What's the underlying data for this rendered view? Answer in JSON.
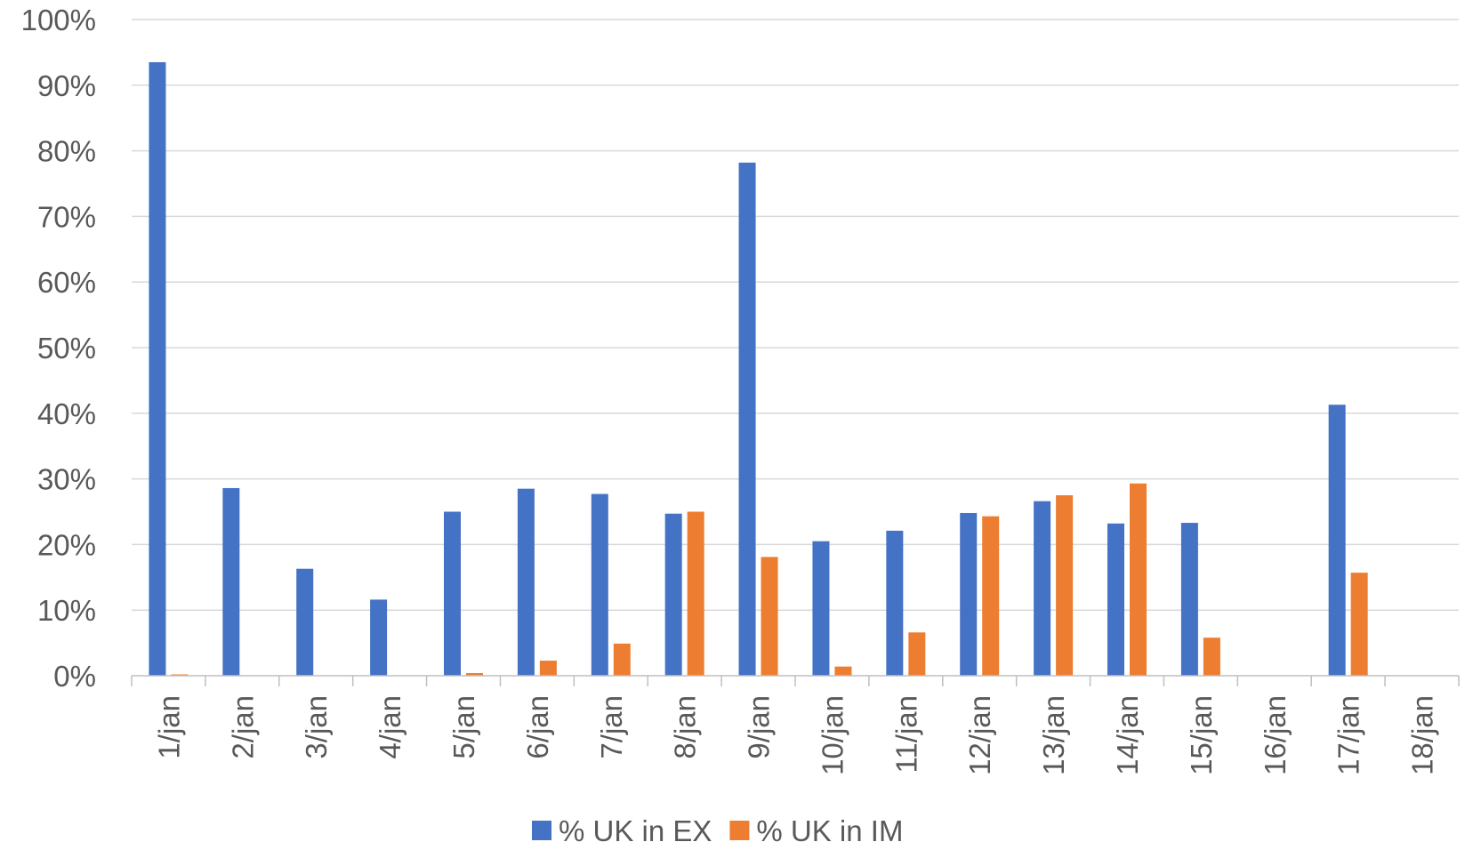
{
  "chart_data": {
    "type": "bar",
    "categories": [
      "1/jan",
      "2/jan",
      "3/jan",
      "4/jan",
      "5/jan",
      "6/jan",
      "7/jan",
      "8/jan",
      "9/jan",
      "10/jan",
      "11/jan",
      "12/jan",
      "13/jan",
      "14/jan",
      "15/jan",
      "16/jan",
      "17/jan",
      "18/jan"
    ],
    "series": [
      {
        "name": "% UK in EX",
        "color": "#4472C4",
        "values": [
          93.5,
          28.6,
          16.3,
          11.6,
          25.0,
          28.5,
          27.7,
          24.7,
          78.2,
          20.5,
          22.1,
          24.8,
          26.6,
          23.2,
          23.3,
          0,
          41.3,
          0
        ]
      },
      {
        "name": "% UK in IM",
        "color": "#ED7D31",
        "values": [
          0.2,
          0,
          0,
          0,
          0.4,
          2.3,
          4.9,
          25.0,
          18.1,
          1.4,
          6.6,
          24.3,
          27.5,
          29.3,
          5.8,
          0,
          15.7,
          0
        ]
      }
    ],
    "yticks": [
      "0%",
      "10%",
      "20%",
      "30%",
      "40%",
      "50%",
      "60%",
      "70%",
      "80%",
      "90%",
      "100%"
    ],
    "ylim": [
      0,
      100
    ],
    "grid": true,
    "legend_position": "bottom",
    "title": "",
    "xlabel": "",
    "ylabel": ""
  }
}
